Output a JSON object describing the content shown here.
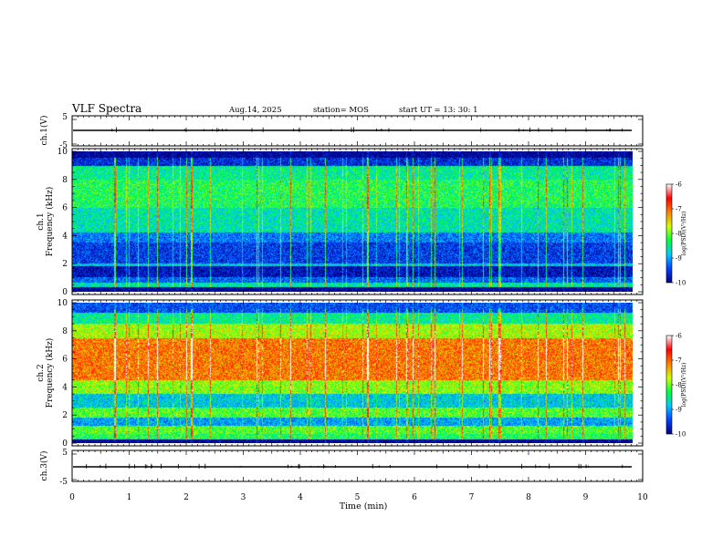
{
  "header": {
    "title": "VLF Spectra",
    "date": "Aug.14, 2025",
    "station": "station= MOS",
    "start": "start  UT =   13: 30: 1"
  },
  "chart_data": [
    {
      "type": "line",
      "panel": "channel-1-waveform",
      "ylabel": "ch.1(V)",
      "ylim": [
        -5,
        5
      ],
      "yticks": [
        5,
        -5
      ],
      "x": [
        0,
        10
      ],
      "series": [
        {
          "values": [
            0,
            0
          ]
        }
      ]
    },
    {
      "type": "heatmap",
      "panel": "channel-1-spectrogram",
      "ylabel_top": "ch.1",
      "ylabel": "Frequency (kHz)",
      "xlim": [
        0,
        9.83
      ],
      "ylim": [
        0,
        10
      ],
      "yticks": [
        0,
        2,
        4,
        6,
        8,
        10
      ],
      "colorbar": {
        "label": "log(PSD)(V²/Hz)",
        "range": [
          -10,
          -6
        ],
        "ticks": [
          -6,
          -7,
          -8,
          -9,
          -10
        ],
        "colors": [
          "#000080",
          "#0040ff",
          "#00c8ff",
          "#00ff40",
          "#d0ff00",
          "#ff8000",
          "#ff0000",
          "#ffffff"
        ]
      },
      "bands": [
        {
          "f": [
            0.0,
            0.3
          ],
          "level": -10.0
        },
        {
          "f": [
            0.3,
            0.6
          ],
          "level": -8.6
        },
        {
          "f": [
            0.6,
            1.0
          ],
          "level": -9.3
        },
        {
          "f": [
            1.0,
            1.8
          ],
          "level": -9.8
        },
        {
          "f": [
            1.8,
            2.0
          ],
          "level": -8.8
        },
        {
          "f": [
            2.0,
            3.5
          ],
          "level": -9.5
        },
        {
          "f": [
            3.5,
            4.2
          ],
          "level": -9.2
        },
        {
          "f": [
            4.2,
            6.0
          ],
          "level": -8.6
        },
        {
          "f": [
            6.0,
            8.0
          ],
          "level": -8.3
        },
        {
          "f": [
            8.0,
            9.0
          ],
          "level": -8.5
        },
        {
          "f": [
            9.0,
            9.6
          ],
          "level": -9.6
        },
        {
          "f": [
            9.6,
            10.0
          ],
          "level": -10.0
        }
      ]
    },
    {
      "type": "heatmap",
      "panel": "channel-2-spectrogram",
      "ylabel_top": "ch.2",
      "ylabel": "Frequency (kHz)",
      "xlim": [
        0,
        9.83
      ],
      "ylim": [
        0,
        10
      ],
      "yticks": [
        0,
        2,
        4,
        6,
        8,
        10
      ],
      "colorbar": {
        "label": "log(PSD)(V²/Hz)",
        "range": [
          -10,
          -6
        ],
        "ticks": [
          -6,
          -7,
          -8,
          -9,
          -10
        ],
        "colors": [
          "#000080",
          "#0040ff",
          "#00c8ff",
          "#00ff40",
          "#d0ff00",
          "#ff8000",
          "#ff0000",
          "#ffffff"
        ]
      },
      "bands": [
        {
          "f": [
            0.0,
            0.25
          ],
          "level": -10.0
        },
        {
          "f": [
            0.25,
            0.6
          ],
          "level": -8.3
        },
        {
          "f": [
            0.6,
            1.2
          ],
          "level": -8.1
        },
        {
          "f": [
            1.2,
            1.8
          ],
          "level": -9.0
        },
        {
          "f": [
            1.8,
            2.5
          ],
          "level": -8.1
        },
        {
          "f": [
            2.5,
            3.5
          ],
          "level": -8.8
        },
        {
          "f": [
            3.5,
            4.5
          ],
          "level": -7.9
        },
        {
          "f": [
            4.5,
            7.5
          ],
          "level": -7.1
        },
        {
          "f": [
            7.5,
            8.5
          ],
          "level": -7.8
        },
        {
          "f": [
            8.5,
            9.3
          ],
          "level": -8.5
        },
        {
          "f": [
            9.3,
            10.0
          ],
          "level": -9.4
        }
      ]
    },
    {
      "type": "line",
      "panel": "channel-3-waveform",
      "ylabel": "ch.3(V)",
      "ylim": [
        -5,
        5
      ],
      "yticks": [
        5,
        -5
      ],
      "x": [
        0,
        10
      ],
      "series": [
        {
          "values": [
            0,
            0
          ]
        }
      ]
    }
  ],
  "xaxis": {
    "label": "Time  (min)",
    "range": [
      0,
      10
    ],
    "ticks": [
      "0",
      "1",
      "2",
      "3",
      "4",
      "5",
      "6",
      "7",
      "8",
      "9",
      "10"
    ]
  }
}
